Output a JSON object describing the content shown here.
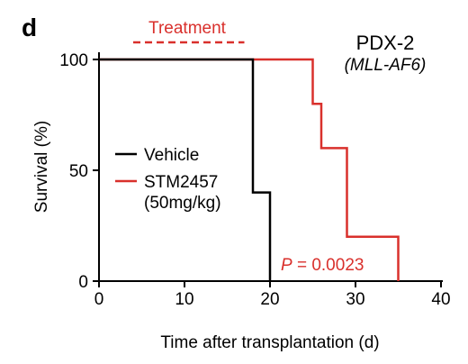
{
  "panel_letter": "d",
  "chart_data": {
    "type": "line",
    "subtype": "kaplan-meier-step",
    "title": "PDX-2",
    "subtitle": "(MLL-AF6)",
    "xlabel": "Time after transplantation (d)",
    "ylabel": "Survival (%)",
    "xlim": [
      0,
      40
    ],
    "ylim": [
      0,
      100
    ],
    "xticks": [
      0,
      10,
      20,
      30,
      40
    ],
    "yticks": [
      0,
      50,
      100
    ],
    "grid": false,
    "legend_position": "middle-left",
    "series": [
      {
        "name": "Vehicle",
        "color": "#000000",
        "x": [
          0,
          18,
          18,
          20,
          20
        ],
        "y": [
          100,
          100,
          40,
          40,
          0
        ]
      },
      {
        "name": "STM2457\n(50mg/kg)",
        "color": "#d9302c",
        "x": [
          0,
          25,
          25,
          26,
          26,
          29,
          29,
          35,
          35
        ],
        "y": [
          100,
          100,
          80,
          80,
          60,
          60,
          20,
          20,
          0
        ]
      }
    ],
    "annotations": {
      "treatment_label": "Treatment",
      "treatment_range": [
        4,
        17
      ],
      "treatment_color": "#d9302c",
      "p_symbol": "P",
      "p_text": " = 0.0023"
    }
  }
}
